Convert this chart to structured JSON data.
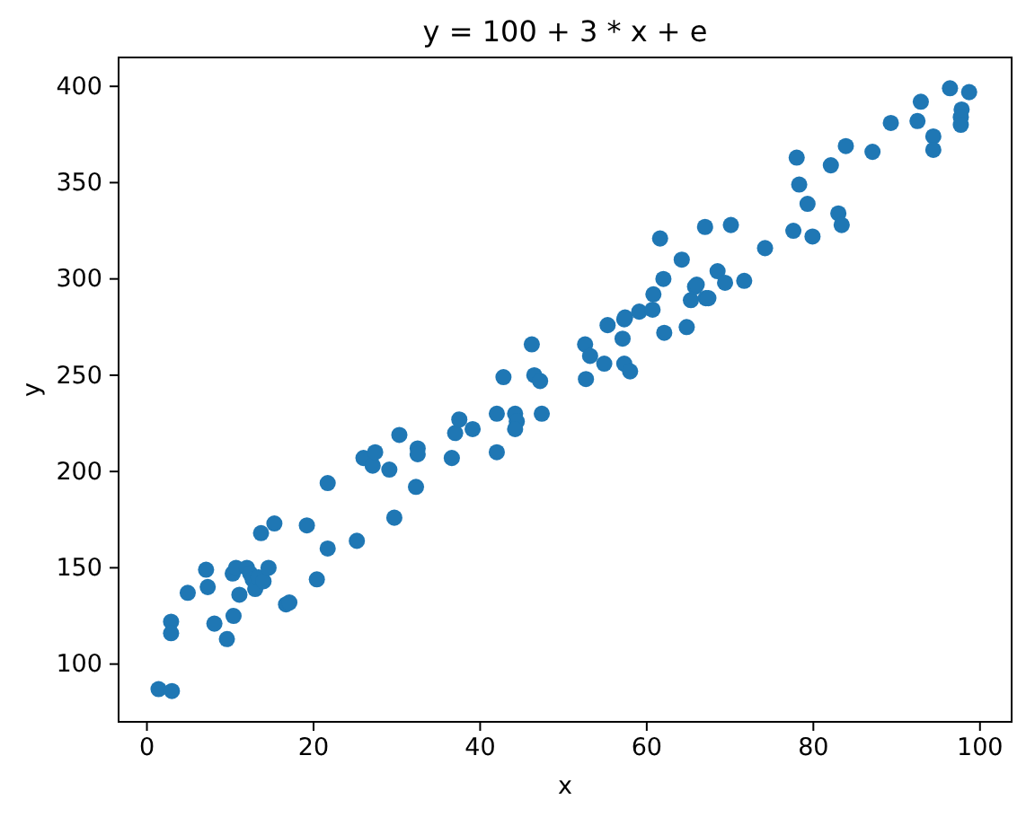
{
  "chart_data": {
    "type": "scatter",
    "title": "y = 100 + 3 * x + e",
    "xlabel": "x",
    "ylabel": "y",
    "marker": "circle",
    "grid": false,
    "xlim": [
      -3.4,
      103.8
    ],
    "ylim": [
      70,
      415
    ],
    "xticks": [
      0,
      20,
      40,
      60,
      80,
      100
    ],
    "yticks": [
      100,
      150,
      200,
      250,
      300,
      350,
      400
    ],
    "series": [
      {
        "color": "#1f77b4",
        "x": [
          1.4,
          3.0,
          2.9,
          2.9,
          4.9,
          7.1,
          7.3,
          8.1,
          9.6,
          10.4,
          10.3,
          10.7,
          11.1,
          12.0,
          12.4,
          12.7,
          13.0,
          13.4,
          14.0,
          14.6,
          13.7,
          15.3,
          16.7,
          17.1,
          19.2,
          20.4,
          21.7,
          21.7,
          25.2,
          26.0,
          27.1,
          27.4,
          29.1,
          29.7,
          30.3,
          32.5,
          32.5,
          32.3,
          36.6,
          37.0,
          37.5,
          39.1,
          42.0,
          42.0,
          42.8,
          44.2,
          44.4,
          44.2,
          46.5,
          47.2,
          47.4,
          46.2,
          52.7,
          52.6,
          53.2,
          54.9,
          57.3,
          58.0,
          57.1,
          55.3,
          57.3,
          57.4,
          59.1,
          60.7,
          60.8,
          62.1,
          62.0,
          61.6,
          64.2,
          64.8,
          65.3,
          65.8,
          66.0,
          67.1,
          67.4,
          68.5,
          69.4,
          67.0,
          70.1,
          71.7,
          74.2,
          77.6,
          79.9,
          78.0,
          78.3,
          79.3,
          83.0,
          83.4,
          82.1,
          83.9,
          87.1,
          89.3,
          92.5,
          92.9,
          94.4,
          94.4,
          96.4,
          98.7,
          97.8,
          97.7,
          97.7
        ],
        "values": [
          87,
          86,
          122,
          116,
          137,
          149,
          140,
          121,
          113,
          125,
          147,
          150,
          136,
          150,
          147,
          144,
          139,
          145,
          143,
          150,
          168,
          173,
          131,
          132,
          172,
          144,
          160,
          194,
          164,
          207,
          203,
          210,
          201,
          176,
          219,
          212,
          209,
          192,
          207,
          220,
          227,
          222,
          230,
          210,
          249,
          230,
          226,
          222,
          250,
          247,
          230,
          266,
          248,
          266,
          260,
          256,
          256,
          252,
          269,
          276,
          279,
          280,
          283,
          284,
          292,
          272,
          300,
          321,
          310,
          275,
          289,
          296,
          297,
          290,
          290,
          304,
          298,
          327,
          328,
          299,
          316,
          325,
          322,
          363,
          349,
          339,
          334,
          328,
          359,
          369,
          366,
          381,
          382,
          392,
          374,
          367,
          399,
          397,
          388,
          384,
          380
        ]
      }
    ]
  }
}
